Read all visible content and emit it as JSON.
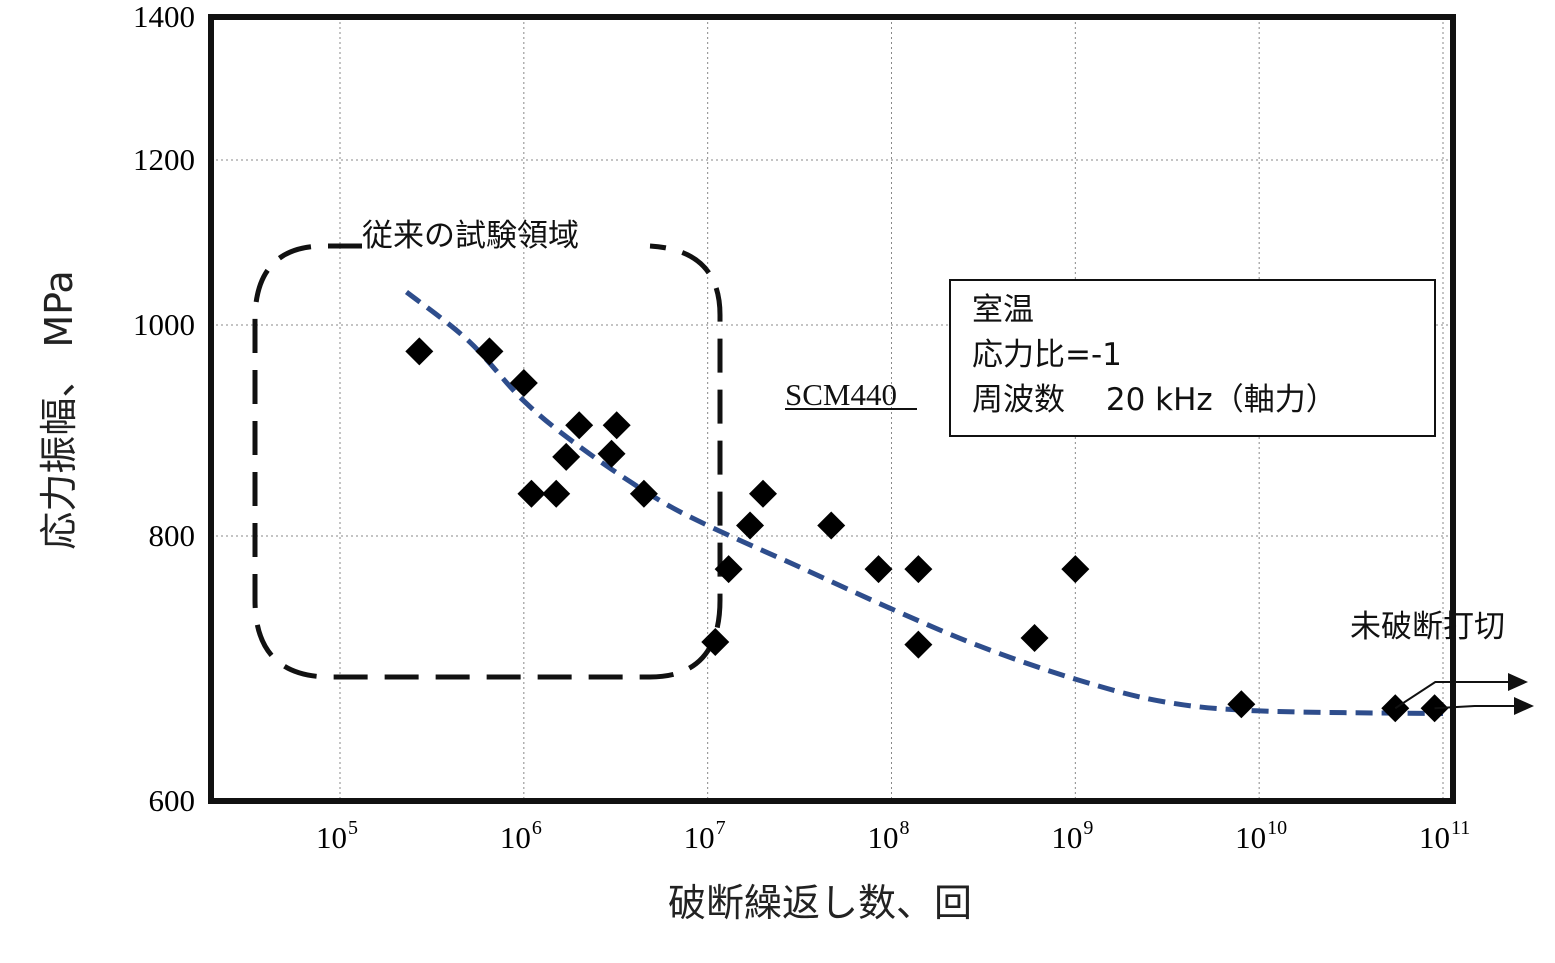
{
  "chart_data": {
    "type": "scatter",
    "title": "",
    "xlabel": "破断繰返し数、回",
    "ylabel": "応力振幅、 MPa",
    "x_scale": "log",
    "xlim": [
      20000,
      100000000000
    ],
    "ylim": [
      600,
      1400
    ],
    "y_ticks": [
      "600",
      "800",
      "1000",
      "1200",
      "1400"
    ],
    "x_ticks": [
      {
        "base": "10",
        "exp": "5",
        "value": 100000
      },
      {
        "base": "10",
        "exp": "6",
        "value": 1000000
      },
      {
        "base": "10",
        "exp": "7",
        "value": 10000000
      },
      {
        "base": "10",
        "exp": "8",
        "value": 100000000
      },
      {
        "base": "10",
        "exp": "9",
        "value": 1000000000
      },
      {
        "base": "10",
        "exp": "10",
        "value": 10000000000
      },
      {
        "base": "10",
        "exp": "11",
        "value": 100000000000
      }
    ],
    "grid": true,
    "series": [
      {
        "marker": "diamond",
        "color": "#000000",
        "points": [
          {
            "x": 270000,
            "y": 975
          },
          {
            "x": 650000,
            "y": 975
          },
          {
            "x": 1000000,
            "y": 945
          },
          {
            "x": 1100000,
            "y": 840
          },
          {
            "x": 1500000,
            "y": 840
          },
          {
            "x": 1700000,
            "y": 875
          },
          {
            "x": 2000000,
            "y": 905
          },
          {
            "x": 3000000,
            "y": 878
          },
          {
            "x": 3200000,
            "y": 905
          },
          {
            "x": 4500000,
            "y": 840
          },
          {
            "x": 11000000,
            "y": 720
          },
          {
            "x": 13000000,
            "y": 775
          },
          {
            "x": 17000000,
            "y": 810
          },
          {
            "x": 20000000,
            "y": 840
          },
          {
            "x": 47000000,
            "y": 810
          },
          {
            "x": 85000000,
            "y": 775
          },
          {
            "x": 140000000,
            "y": 775
          },
          {
            "x": 140000000,
            "y": 718
          },
          {
            "x": 600000000,
            "y": 723
          },
          {
            "x": 1000000000,
            "y": 775
          },
          {
            "x": 8000000000,
            "y": 673
          },
          {
            "x": 55000000000,
            "y": 670
          },
          {
            "x": 90000000000,
            "y": 670
          }
        ]
      }
    ],
    "trend_line": {
      "style": "dashed",
      "color": "#2e4d8c",
      "points": [
        {
          "x": 230000,
          "y": 1040
        },
        {
          "x": 500000,
          "y": 985
        },
        {
          "x": 1000000,
          "y": 928
        },
        {
          "x": 2000000,
          "y": 885
        },
        {
          "x": 5000000,
          "y": 838
        },
        {
          "x": 10000000,
          "y": 810
        },
        {
          "x": 30000000,
          "y": 778
        },
        {
          "x": 100000000,
          "y": 745
        },
        {
          "x": 300000000,
          "y": 717
        },
        {
          "x": 1000000000,
          "y": 692
        },
        {
          "x": 3000000000,
          "y": 675
        },
        {
          "x": 10000000000,
          "y": 668
        },
        {
          "x": 100000000000,
          "y": 666
        }
      ]
    },
    "runout_arrows": [
      {
        "x": 55000000000,
        "y": 670
      },
      {
        "x": 90000000000,
        "y": 670
      }
    ],
    "annotations": {
      "conventional_region_label": "従来の試験領域",
      "material_label": "SCM440",
      "runout_label": "未破断打切",
      "conditions": [
        "室温",
        "応力比=-1",
        "周波数　 20 kHz（軸力）"
      ]
    }
  }
}
